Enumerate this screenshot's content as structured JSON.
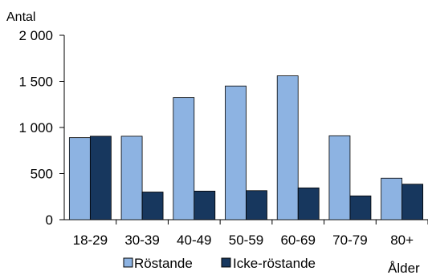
{
  "chart_data": {
    "type": "bar",
    "title": "",
    "ylabel": "Antal",
    "xlabel": "Ålder",
    "ylim": [
      0,
      2000
    ],
    "yticks": [
      0,
      500,
      1000,
      1500,
      2000
    ],
    "ytick_labels": [
      "0",
      "500",
      "1 000",
      "1 500",
      "2 000"
    ],
    "categories": [
      "18-29",
      "30-39",
      "40-49",
      "50-59",
      "60-69",
      "70-79",
      "80+"
    ],
    "series": [
      {
        "name": "Röstande",
        "color": "#8db3e2",
        "values": [
          890,
          905,
          1325,
          1450,
          1560,
          910,
          450
        ]
      },
      {
        "name": "Icke-röstande",
        "color": "#17375e",
        "values": [
          905,
          300,
          310,
          315,
          345,
          258,
          385
        ]
      }
    ],
    "grid": false,
    "legend": "bottom"
  }
}
